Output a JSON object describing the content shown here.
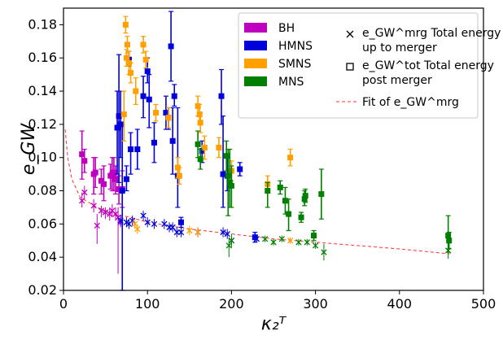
{
  "chart_data": {
    "type": "scatter",
    "xlabel": "κ₂ᵀ",
    "ylabel": "e_GW",
    "xlim": [
      0,
      500
    ],
    "ylim": [
      0.02,
      0.19
    ],
    "x_ticks": [
      "0",
      "100",
      "200",
      "300",
      "400",
      "500"
    ],
    "y_ticks": [
      "0.02",
      "0.04",
      "0.06",
      "0.08",
      "0.10",
      "0.12",
      "0.14",
      "0.16",
      "0.18"
    ],
    "grid": false,
    "legend_placement": "top-right",
    "colors": {
      "BH": "#bf00bf",
      "HMNS": "#0000dd",
      "SMNS": "#ff9f00",
      "MNS": "#007f00",
      "fit": "#ff3030"
    },
    "legend": {
      "categories": [
        {
          "key": "BH",
          "label": "BH"
        },
        {
          "key": "HMNS",
          "label": "HMNS"
        },
        {
          "key": "SMNS",
          "label": "SMNS"
        },
        {
          "key": "MNS",
          "label": "MNS"
        }
      ],
      "markers": [
        {
          "symbol": "cross",
          "line1": "e_GW^mrg Total energy",
          "line2": "up to merger"
        },
        {
          "symbol": "square",
          "line1": "e_GW^tot Total energy",
          "line2": "post merger"
        }
      ],
      "fit_label": "Fit of e_GW^mrg"
    },
    "series": [
      {
        "name": "BH",
        "merger": [
          [
            22,
            0.074,
            0.07,
            0.079
          ],
          [
            25,
            0.079,
            0.075,
            0.083
          ],
          [
            36,
            0.071,
            0.067,
            0.075
          ],
          [
            40,
            0.059,
            0.048,
            0.066
          ],
          [
            45,
            0.068,
            0.064,
            0.071
          ],
          [
            50,
            0.067,
            0.063,
            0.07
          ],
          [
            55,
            0.066,
            0.062,
            0.07
          ],
          [
            58,
            0.068,
            0.064,
            0.072
          ],
          [
            62,
            0.066,
            0.062,
            0.07
          ],
          [
            65,
            0.064,
            0.03,
            0.07
          ],
          [
            68,
            0.061,
            0.058,
            0.064
          ]
        ],
        "total": [
          [
            22,
            0.102,
            0.087,
            0.116
          ],
          [
            25,
            0.098,
            0.091,
            0.105
          ],
          [
            36,
            0.09,
            0.078,
            0.1
          ],
          [
            38,
            0.091,
            0.082,
            0.1
          ],
          [
            45,
            0.086,
            0.078,
            0.093
          ],
          [
            48,
            0.084,
            0.074,
            0.095
          ],
          [
            56,
            0.089,
            0.081,
            0.096
          ],
          [
            58,
            0.09,
            0.08,
            0.1
          ],
          [
            60,
            0.091,
            0.08,
            0.1
          ],
          [
            62,
            0.087,
            0.078,
            0.095
          ],
          [
            66,
            0.081,
            0.072,
            0.089
          ],
          [
            70,
            0.081,
            0.07,
            0.092
          ]
        ]
      },
      {
        "name": "HMNS",
        "merger": [
          [
            68,
            0.062,
            0.059,
            0.065
          ],
          [
            75,
            0.061,
            0.058,
            0.064
          ],
          [
            78,
            0.06,
            0.057,
            0.063
          ],
          [
            82,
            0.062,
            0.059,
            0.065
          ],
          [
            95,
            0.065,
            0.062,
            0.068
          ],
          [
            100,
            0.061,
            0.058,
            0.064
          ],
          [
            108,
            0.06,
            0.057,
            0.063
          ],
          [
            120,
            0.06,
            0.057,
            0.063
          ],
          [
            126,
            0.058,
            0.055,
            0.061
          ],
          [
            130,
            0.058,
            0.055,
            0.061
          ],
          [
            135,
            0.055,
            0.052,
            0.058
          ],
          [
            140,
            0.055,
            0.052,
            0.058
          ],
          [
            160,
            0.055,
            0.052,
            0.058
          ],
          [
            190,
            0.055,
            0.052,
            0.058
          ],
          [
            195,
            0.054,
            0.051,
            0.057
          ],
          [
            200,
            0.05,
            0.048,
            0.052
          ],
          [
            230,
            0.051,
            0.049,
            0.053
          ]
        ],
        "total": [
          [
            64,
            0.118,
            0.09,
            0.14
          ],
          [
            66,
            0.125,
            0.085,
            0.162
          ],
          [
            68,
            0.12,
            0.1,
            0.14
          ],
          [
            70,
            0.08,
            0.02,
            0.12
          ],
          [
            75,
            0.087,
            0.08,
            0.095
          ],
          [
            78,
            0.159,
            0.155,
            0.164
          ],
          [
            80,
            0.105,
            0.09,
            0.115
          ],
          [
            88,
            0.105,
            0.093,
            0.117
          ],
          [
            95,
            0.137,
            0.124,
            0.149
          ],
          [
            100,
            0.152,
            0.145,
            0.16
          ],
          [
            102,
            0.135,
            0.118,
            0.15
          ],
          [
            108,
            0.109,
            0.097,
            0.121
          ],
          [
            122,
            0.127,
            0.117,
            0.137
          ],
          [
            125,
            0.124,
            0.117,
            0.13
          ],
          [
            128,
            0.167,
            0.146,
            0.188
          ],
          [
            130,
            0.11,
            0.09,
            0.13
          ],
          [
            132,
            0.137,
            0.131,
            0.144
          ],
          [
            136,
            0.089,
            0.07,
            0.13
          ],
          [
            140,
            0.061,
            0.058,
            0.064
          ],
          [
            165,
            0.104,
            0.097,
            0.11
          ],
          [
            188,
            0.137,
            0.12,
            0.153
          ],
          [
            190,
            0.09,
            0.07,
            0.125
          ],
          [
            195,
            0.089,
            0.08,
            0.1
          ],
          [
            210,
            0.093,
            0.089,
            0.097
          ],
          [
            228,
            0.052,
            0.049,
            0.055
          ]
        ]
      },
      {
        "name": "SMNS",
        "merger": [
          [
            85,
            0.06,
            0.057,
            0.063
          ],
          [
            88,
            0.057,
            0.054,
            0.06
          ],
          [
            150,
            0.056,
            0.053,
            0.059
          ],
          [
            160,
            0.055,
            0.052,
            0.058
          ],
          [
            270,
            0.05,
            0.048,
            0.052
          ]
        ],
        "total": [
          [
            72,
            0.126,
            0.11,
            0.14
          ],
          [
            74,
            0.18,
            0.175,
            0.185
          ],
          [
            75,
            0.16,
            0.155,
            0.165
          ],
          [
            76,
            0.168,
            0.163,
            0.173
          ],
          [
            78,
            0.157,
            0.15,
            0.164
          ],
          [
            80,
            0.151,
            0.145,
            0.157
          ],
          [
            86,
            0.14,
            0.132,
            0.148
          ],
          [
            95,
            0.168,
            0.163,
            0.173
          ],
          [
            98,
            0.159,
            0.154,
            0.164
          ],
          [
            110,
            0.127,
            0.122,
            0.132
          ],
          [
            125,
            0.124,
            0.118,
            0.13
          ],
          [
            136,
            0.094,
            0.088,
            0.1
          ],
          [
            138,
            0.089,
            0.084,
            0.094
          ],
          [
            160,
            0.131,
            0.125,
            0.137
          ],
          [
            162,
            0.126,
            0.12,
            0.132
          ],
          [
            163,
            0.121,
            0.115,
            0.127
          ],
          [
            168,
            0.106,
            0.099,
            0.113
          ],
          [
            185,
            0.106,
            0.1,
            0.112
          ],
          [
            200,
            0.092,
            0.086,
            0.098
          ],
          [
            243,
            0.084,
            0.079,
            0.089
          ],
          [
            270,
            0.1,
            0.095,
            0.105
          ]
        ]
      },
      {
        "name": "MNS",
        "merger": [
          [
            197,
            0.047,
            0.04,
            0.052
          ],
          [
            200,
            0.05,
            0.046,
            0.054
          ],
          [
            240,
            0.051,
            0.049,
            0.053
          ],
          [
            250,
            0.049,
            0.047,
            0.051
          ],
          [
            260,
            0.051,
            0.049,
            0.053
          ],
          [
            280,
            0.049,
            0.047,
            0.051
          ],
          [
            290,
            0.049,
            0.047,
            0.051
          ],
          [
            300,
            0.047,
            0.045,
            0.049
          ],
          [
            310,
            0.043,
            0.038,
            0.048
          ],
          [
            458,
            0.044,
            0.039,
            0.049
          ]
        ],
        "total": [
          [
            160,
            0.108,
            0.1,
            0.116
          ],
          [
            163,
            0.099,
            0.093,
            0.105
          ],
          [
            194,
            0.101,
            0.092,
            0.11
          ],
          [
            196,
            0.089,
            0.065,
            0.105
          ],
          [
            198,
            0.085,
            0.07,
            0.105
          ],
          [
            200,
            0.083,
            0.07,
            0.095
          ],
          [
            243,
            0.08,
            0.07,
            0.085
          ],
          [
            258,
            0.082,
            0.078,
            0.086
          ],
          [
            264,
            0.074,
            0.066,
            0.082
          ],
          [
            268,
            0.066,
            0.056,
            0.075
          ],
          [
            283,
            0.064,
            0.061,
            0.067
          ],
          [
            287,
            0.075,
            0.071,
            0.08
          ],
          [
            288,
            0.077,
            0.073,
            0.081
          ],
          [
            298,
            0.053,
            0.05,
            0.056
          ],
          [
            307,
            0.078,
            0.063,
            0.093
          ],
          [
            458,
            0.053,
            0.043,
            0.065
          ],
          [
            459,
            0.05,
            0.045,
            0.055
          ]
        ]
      }
    ],
    "fit": [
      [
        2,
        0.117
      ],
      [
        5,
        0.1
      ],
      [
        10,
        0.087
      ],
      [
        20,
        0.076
      ],
      [
        40,
        0.07
      ],
      [
        60,
        0.066
      ],
      [
        80,
        0.064
      ],
      [
        100,
        0.061
      ],
      [
        150,
        0.057
      ],
      [
        200,
        0.054
      ],
      [
        250,
        0.051
      ],
      [
        300,
        0.049
      ],
      [
        350,
        0.047
      ],
      [
        400,
        0.045
      ],
      [
        460,
        0.042
      ]
    ]
  }
}
